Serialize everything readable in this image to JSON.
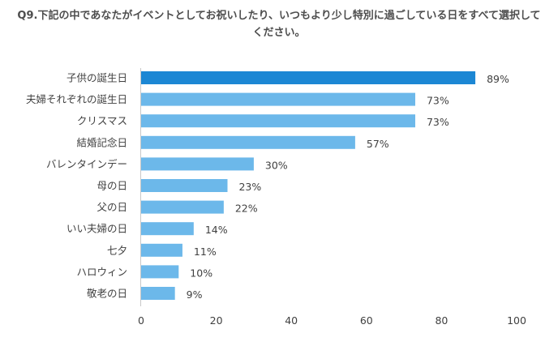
{
  "chart_data": {
    "type": "bar",
    "orientation": "horizontal",
    "title_lines": [
      "Q9.下記の中であなたがイベントとしてお祝いしたり、いつもより少し特別に過ごしている日をすべて選択して",
      "ください。"
    ],
    "categories": [
      "子供の誕生日",
      "夫婦それぞれの誕生日",
      "クリスマス",
      "結婚記念日",
      "バレンタインデー",
      "母の日",
      "父の日",
      "いい夫婦の日",
      "七夕",
      "ハロウィン",
      "敬老の日"
    ],
    "values": [
      89,
      73,
      73,
      57,
      30,
      23,
      22,
      14,
      11,
      10,
      9
    ],
    "value_labels": [
      "89%",
      "73%",
      "73%",
      "57%",
      "30%",
      "23%",
      "22%",
      "14%",
      "11%",
      "10%",
      "9%"
    ],
    "xlim": [
      0,
      100
    ],
    "xticks": [
      0,
      20,
      40,
      60,
      80,
      100
    ],
    "grid": false,
    "legend": "none",
    "colors": {
      "highlight_bar": "#1c87d4",
      "bar": "#6cb8ea",
      "text": "#404040",
      "axis": "#c8c8c8",
      "title": "#4d4d4d"
    }
  }
}
